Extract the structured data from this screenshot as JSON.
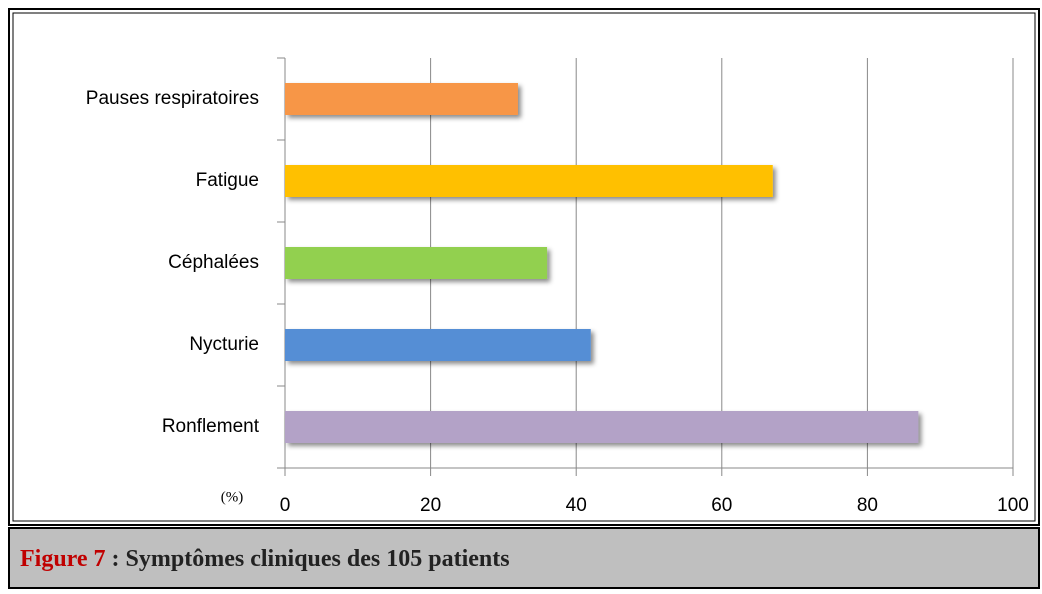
{
  "chart_data": {
    "type": "hbar",
    "categories": [
      "Pauses respiratoires",
      "Fatigue",
      "Céphalées",
      "Nycturie",
      "Ronflement"
    ],
    "values": [
      32,
      67,
      36,
      42,
      87
    ],
    "colors": [
      "#f79646",
      "#ffc000",
      "#92d050",
      "#558ed5",
      "#b3a2c7"
    ],
    "xlim": [
      0,
      100
    ],
    "xticks": [
      0,
      20,
      40,
      60,
      80,
      100
    ],
    "grid": true,
    "xlabel": "(%)",
    "caption_label": "Figure 7",
    "caption": ": Symptômes cliniques des 105 patients"
  }
}
